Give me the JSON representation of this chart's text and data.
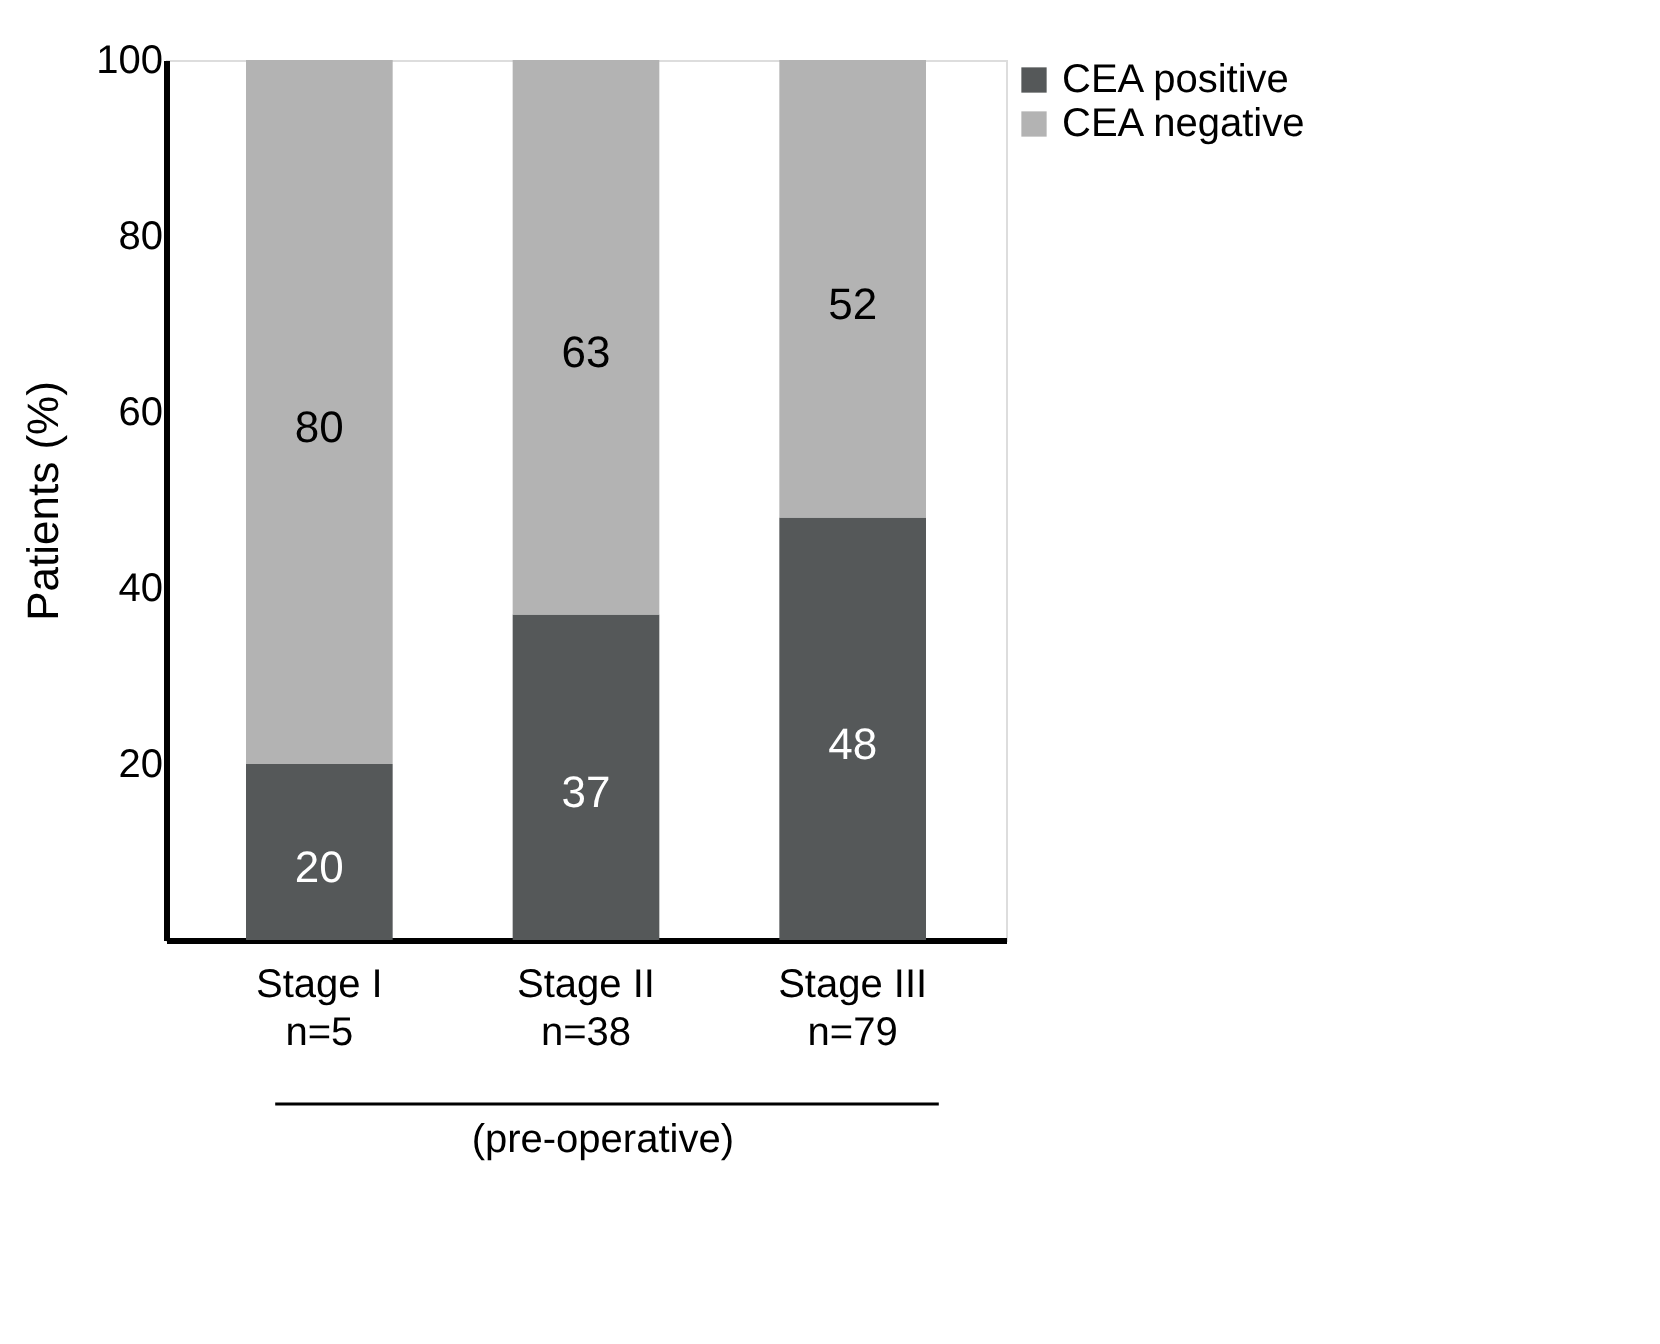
{
  "chart_data": {
    "type": "bar",
    "stacked": true,
    "ylabel": "Patients (%)",
    "categories": [
      "Stage I\nn=5",
      "Stage II\nn=38",
      "Stage III\nn=79"
    ],
    "series": [
      {
        "name": "CEA positive",
        "color": "#555859",
        "values": [
          20,
          37,
          48
        ]
      },
      {
        "name": "CEA negative",
        "color": "#b3b3b3",
        "values": [
          80,
          63,
          52
        ]
      }
    ],
    "ylim": [
      0,
      100
    ],
    "yticks": [
      20,
      40,
      60,
      80,
      100
    ],
    "data_labels": true,
    "legend": "right",
    "grid": false,
    "annotations": [
      "(pre-operative)"
    ]
  }
}
